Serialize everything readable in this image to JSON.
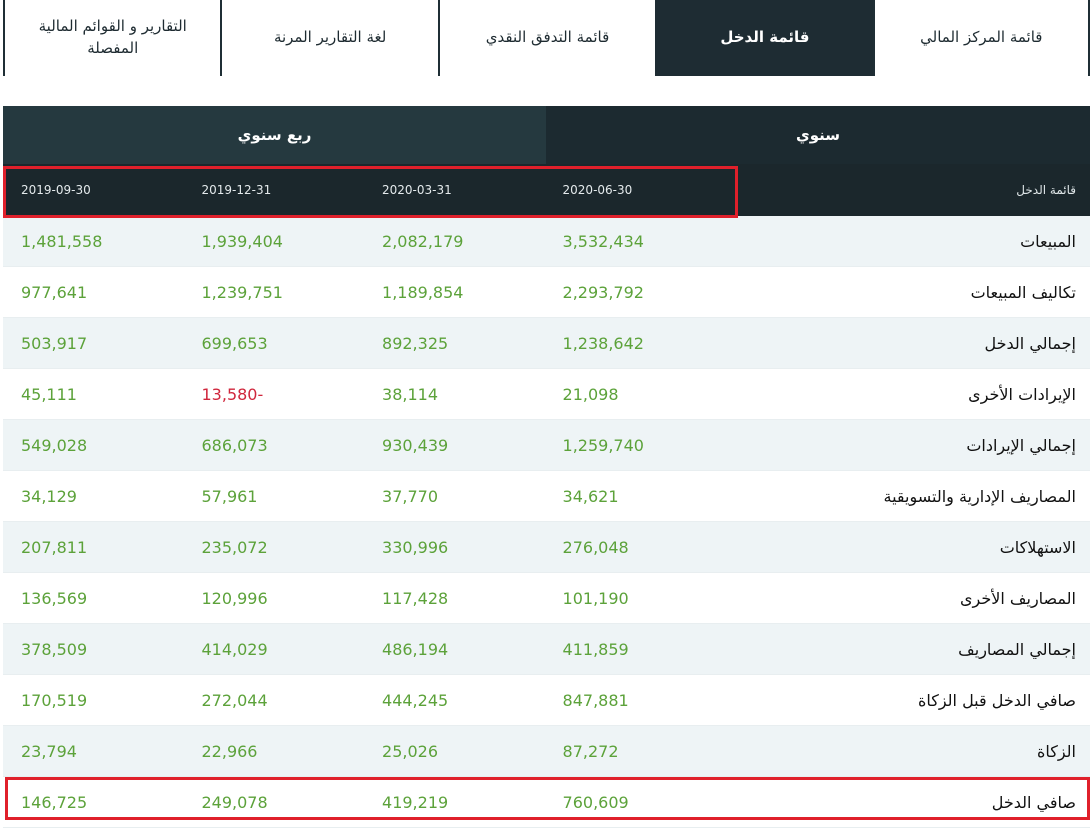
{
  "tabs": [
    {
      "label": "قائمة المركز المالي",
      "active": false
    },
    {
      "label": "قائمة الدخل",
      "active": true
    },
    {
      "label": "قائمة التدفق النقدي",
      "active": false
    },
    {
      "label": "لغة التقارير المرنة",
      "active": false
    },
    {
      "label": "التقارير و القوائم المالية المفصلة",
      "active": false
    }
  ],
  "periods": {
    "annual": "سنوي",
    "quarterly": "ربع سنوي"
  },
  "table": {
    "header_label": "قائمة الدخل",
    "dates": [
      "2020-06-30",
      "2020-03-31",
      "2019-12-31",
      "2019-09-30"
    ],
    "rows": [
      {
        "label": "المبيعات",
        "values": [
          "3,532,434",
          "2,082,179",
          "1,939,404",
          "1,481,558"
        ]
      },
      {
        "label": "تكاليف المبيعات",
        "values": [
          "2,293,792",
          "1,189,854",
          "1,239,751",
          "977,641"
        ]
      },
      {
        "label": "إجمالي الدخل",
        "values": [
          "1,238,642",
          "892,325",
          "699,653",
          "503,917"
        ]
      },
      {
        "label": "الإيرادات الأخرى",
        "values": [
          "21,098",
          "38,114",
          "13,580-",
          "45,111"
        ]
      },
      {
        "label": "إجمالي الإيرادات",
        "values": [
          "1,259,740",
          "930,439",
          "686,073",
          "549,028"
        ]
      },
      {
        "label": "المصاريف الإدارية والتسويقية",
        "values": [
          "34,621",
          "37,770",
          "57,961",
          "34,129"
        ]
      },
      {
        "label": "الاستهلاكات",
        "values": [
          "276,048",
          "330,996",
          "235,072",
          "207,811"
        ]
      },
      {
        "label": "المصاريف الأخرى",
        "values": [
          "101,190",
          "117,428",
          "120,996",
          "136,569"
        ]
      },
      {
        "label": "إجمالي المصاريف",
        "values": [
          "411,859",
          "486,194",
          "414,029",
          "378,509"
        ]
      },
      {
        "label": "صافي الدخل قبل الزكاة",
        "values": [
          "847,881",
          "444,245",
          "272,044",
          "170,519"
        ]
      },
      {
        "label": "الزكاة",
        "values": [
          "87,272",
          "25,026",
          "22,966",
          "23,794"
        ]
      },
      {
        "label": "صافي الدخل",
        "values": [
          "760,609",
          "419,219",
          "249,078",
          "146,725"
        ]
      }
    ]
  },
  "colors": {
    "positive": "#5ca23a",
    "negative": "#d0263c",
    "highlight": "#e0202b",
    "header_bg": "#1b272c"
  }
}
